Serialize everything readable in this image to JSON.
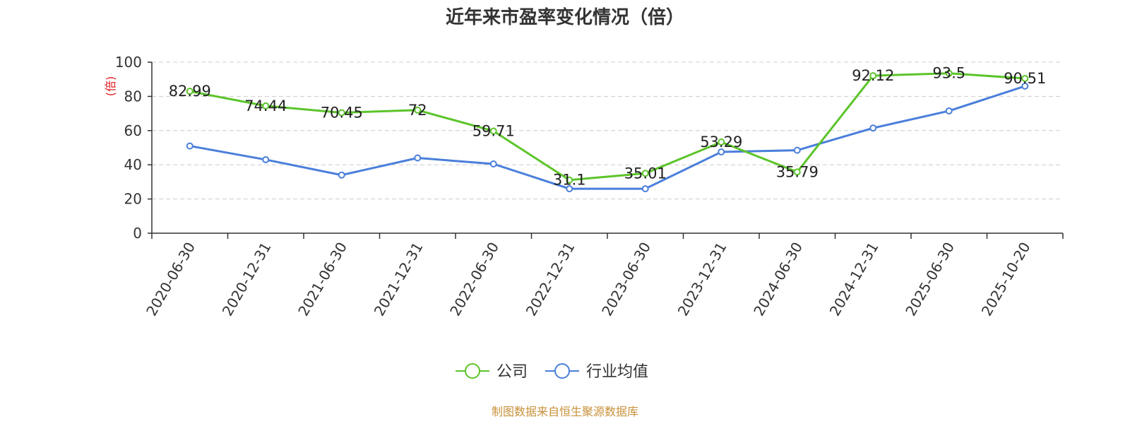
{
  "chart_data": {
    "type": "line",
    "title": "近年来市盈率变化情况（倍）",
    "ylabel": "(倍)",
    "xlabel": "",
    "ylim": [
      0,
      100
    ],
    "yticks": [
      0,
      20,
      40,
      60,
      80,
      100
    ],
    "grid": true,
    "legend_position": "bottom",
    "categories": [
      "2020-06-30",
      "2020-12-31",
      "2021-06-30",
      "2021-12-31",
      "2022-06-30",
      "2022-12-31",
      "2023-06-30",
      "2023-12-31",
      "2024-06-30",
      "2024-12-31",
      "2025-06-30",
      "2025-10-20"
    ],
    "series": [
      {
        "name": "公司",
        "color": "#5cc42a",
        "values": [
          82.99,
          74.44,
          70.45,
          72,
          59.71,
          31.1,
          35.01,
          53.29,
          35.79,
          92.12,
          93.5,
          90.51
        ],
        "labels": [
          "82.99",
          "74.44",
          "70.45",
          "72",
          "59.71",
          "31.1",
          "35.01",
          "53.29",
          "35.79",
          "92.12",
          "93.5",
          "90.51"
        ]
      },
      {
        "name": "行业均值",
        "color": "#4a7fdb",
        "values": [
          51,
          43,
          34,
          44,
          40.5,
          26,
          26,
          47.5,
          48.5,
          61.5,
          71.5,
          86
        ]
      }
    ],
    "source": "制图数据来自恒生聚源数据库"
  }
}
